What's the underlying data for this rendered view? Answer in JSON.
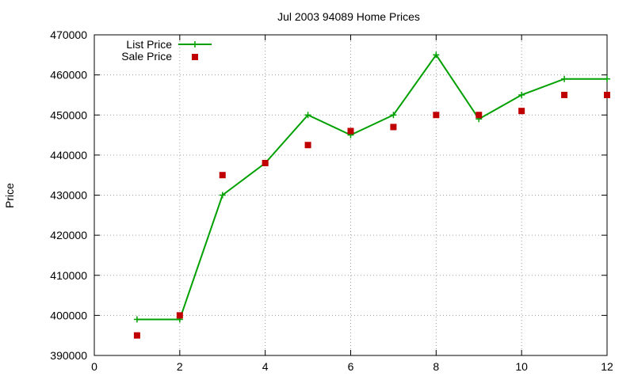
{
  "chart_data": {
    "type": "line",
    "title": "Jul 2003 94089 Home Prices",
    "xlabel": "",
    "ylabel": "Price",
    "xlim": [
      0,
      12
    ],
    "ylim": [
      390000,
      470000
    ],
    "x_ticks": [
      0,
      2,
      4,
      6,
      8,
      10,
      12
    ],
    "y_ticks": [
      390000,
      400000,
      410000,
      420000,
      430000,
      440000,
      450000,
      460000,
      470000
    ],
    "grid": true,
    "legend_position": "top-left",
    "series": [
      {
        "name": "List Price",
        "style": "line-plus",
        "color": "#00a000",
        "x": [
          1,
          2,
          3,
          4,
          5,
          6,
          7,
          8,
          9,
          10,
          11,
          12
        ],
        "values": [
          399000,
          399000,
          430000,
          438000,
          450000,
          445000,
          450000,
          465000,
          449000,
          455000,
          459000,
          459000
        ]
      },
      {
        "name": "Sale Price",
        "style": "square",
        "color": "#c00000",
        "x": [
          1,
          2,
          3,
          4,
          5,
          6,
          7,
          8,
          9,
          10,
          11,
          12
        ],
        "values": [
          395000,
          400000,
          435000,
          438000,
          442500,
          446000,
          447000,
          450000,
          450000,
          451000,
          455000,
          455000
        ]
      }
    ]
  }
}
